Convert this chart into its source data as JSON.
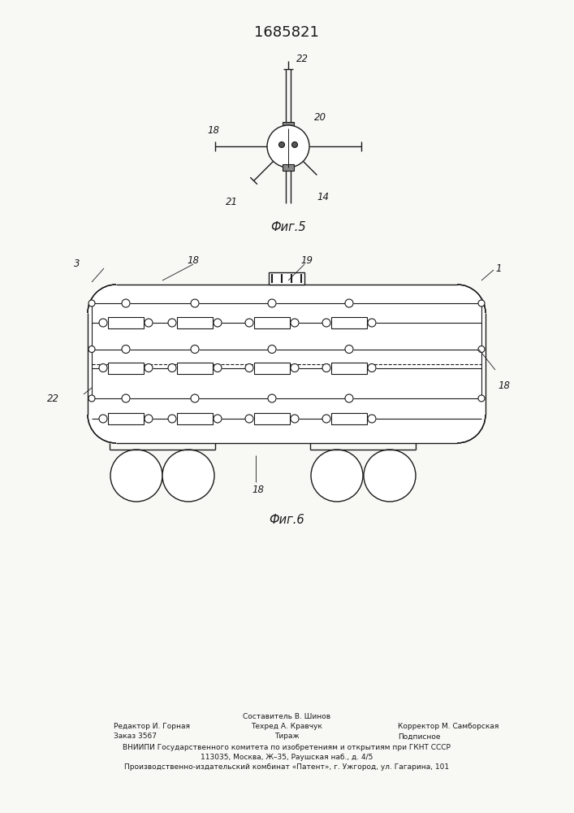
{
  "title": "1685821",
  "title_fontsize": 13,
  "fig5_caption": "Фиг.5",
  "fig6_caption": "Фиг.6",
  "bg_color": "#f8f8f5",
  "line_color": "#1a1a1a",
  "footer": {
    "line0_left": "Редактор И. Горная",
    "line0_center_top": "Составитель В. Шинов",
    "line0_center": "Техред А. Кравчук",
    "line0_right": "Корректор М. Самборская",
    "line1_left": "Заказ 3567",
    "line1_center": "Тираж",
    "line1_right": "Подписное",
    "line2": "ВНИИПИ Государственного комитета по изобретениям и открытиям при ГКНТ СССР",
    "line3": "113035, Москва, Ж–35, Раушская наб., д. 4/5",
    "line4": "Производственно-издательский комбинат «Патент», г. Ужгород, ул. Гагарина, 101"
  }
}
